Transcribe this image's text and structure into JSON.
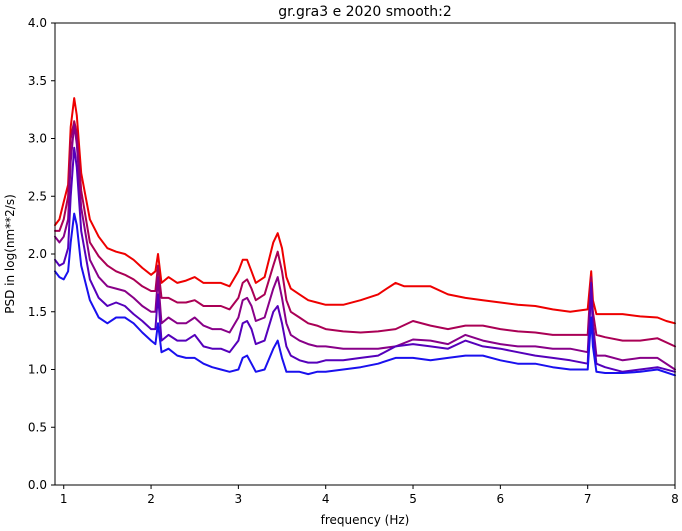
{
  "chart_data": {
    "type": "line",
    "title": "gr.gra3 e 2020 smooth:2",
    "xlabel": "frequency (Hz)",
    "ylabel": "PSD in log(nm**2/s)",
    "xlim": [
      0.9,
      8
    ],
    "ylim": [
      0,
      4
    ],
    "xticks": [
      "1",
      "2",
      "3",
      "4",
      "5",
      "6",
      "7",
      "8"
    ],
    "yticks": [
      "0.0",
      "0.5",
      "1.0",
      "1.5",
      "2.0",
      "2.5",
      "3.0",
      "3.5",
      "4.0"
    ],
    "grid": false,
    "legend": "none",
    "series": [
      {
        "color": "#ee0000",
        "x": [
          0.9,
          0.95,
          1.0,
          1.05,
          1.08,
          1.12,
          1.15,
          1.2,
          1.3,
          1.4,
          1.5,
          1.6,
          1.7,
          1.8,
          1.9,
          2.0,
          2.05,
          2.08,
          2.12,
          2.2,
          2.3,
          2.4,
          2.5,
          2.6,
          2.7,
          2.8,
          2.9,
          3.0,
          3.05,
          3.1,
          3.15,
          3.2,
          3.3,
          3.4,
          3.45,
          3.5,
          3.55,
          3.6,
          3.7,
          3.8,
          3.9,
          4.0,
          4.2,
          4.4,
          4.6,
          4.7,
          4.8,
          4.9,
          5.0,
          5.2,
          5.4,
          5.6,
          5.8,
          6.0,
          6.2,
          6.4,
          6.6,
          6.8,
          7.0,
          7.04,
          7.06,
          7.1,
          7.2,
          7.4,
          7.6,
          7.8,
          7.9,
          8.0
        ],
        "y": [
          2.25,
          2.3,
          2.45,
          2.6,
          3.1,
          3.35,
          3.2,
          2.7,
          2.3,
          2.15,
          2.05,
          2.02,
          2.0,
          1.95,
          1.88,
          1.82,
          1.85,
          2.0,
          1.75,
          1.8,
          1.75,
          1.77,
          1.8,
          1.75,
          1.75,
          1.75,
          1.72,
          1.85,
          1.95,
          1.95,
          1.85,
          1.75,
          1.8,
          2.1,
          2.18,
          2.05,
          1.8,
          1.7,
          1.65,
          1.6,
          1.58,
          1.56,
          1.56,
          1.6,
          1.65,
          1.7,
          1.75,
          1.72,
          1.72,
          1.72,
          1.65,
          1.62,
          1.6,
          1.58,
          1.56,
          1.55,
          1.52,
          1.5,
          1.52,
          1.85,
          1.6,
          1.48,
          1.48,
          1.48,
          1.46,
          1.45,
          1.42,
          1.4
        ]
      },
      {
        "color": "#aa0055",
        "x": [
          0.9,
          0.95,
          1.0,
          1.05,
          1.08,
          1.12,
          1.15,
          1.2,
          1.3,
          1.4,
          1.5,
          1.6,
          1.7,
          1.8,
          1.9,
          2.0,
          2.05,
          2.08,
          2.12,
          2.2,
          2.3,
          2.4,
          2.5,
          2.6,
          2.7,
          2.8,
          2.9,
          3.0,
          3.05,
          3.1,
          3.15,
          3.2,
          3.3,
          3.4,
          3.45,
          3.5,
          3.55,
          3.6,
          3.7,
          3.8,
          3.9,
          4.0,
          4.2,
          4.4,
          4.6,
          4.8,
          5.0,
          5.2,
          5.4,
          5.6,
          5.8,
          6.0,
          6.2,
          6.4,
          6.6,
          6.8,
          7.0,
          7.04,
          7.06,
          7.1,
          7.2,
          7.4,
          7.6,
          7.8,
          8.0
        ],
        "y": [
          2.2,
          2.2,
          2.3,
          2.5,
          3.0,
          3.15,
          3.05,
          2.55,
          2.1,
          1.98,
          1.9,
          1.85,
          1.82,
          1.78,
          1.72,
          1.68,
          1.68,
          1.9,
          1.62,
          1.62,
          1.58,
          1.58,
          1.6,
          1.55,
          1.55,
          1.55,
          1.52,
          1.62,
          1.75,
          1.78,
          1.7,
          1.6,
          1.65,
          1.9,
          2.02,
          1.85,
          1.6,
          1.5,
          1.45,
          1.4,
          1.38,
          1.35,
          1.33,
          1.32,
          1.33,
          1.35,
          1.42,
          1.38,
          1.35,
          1.38,
          1.38,
          1.35,
          1.33,
          1.32,
          1.3,
          1.3,
          1.3,
          1.8,
          1.5,
          1.3,
          1.28,
          1.25,
          1.25,
          1.27,
          1.2
        ]
      },
      {
        "color": "#880088",
        "x": [
          0.9,
          0.95,
          1.0,
          1.05,
          1.08,
          1.12,
          1.15,
          1.2,
          1.3,
          1.4,
          1.5,
          1.6,
          1.7,
          1.8,
          1.9,
          2.0,
          2.05,
          2.08,
          2.12,
          2.2,
          2.3,
          2.4,
          2.5,
          2.6,
          2.7,
          2.8,
          2.9,
          3.0,
          3.05,
          3.1,
          3.15,
          3.2,
          3.3,
          3.4,
          3.45,
          3.5,
          3.55,
          3.6,
          3.7,
          3.8,
          3.9,
          4.0,
          4.2,
          4.4,
          4.6,
          4.8,
          5.0,
          5.2,
          5.4,
          5.6,
          5.8,
          6.0,
          6.2,
          6.4,
          6.6,
          6.8,
          7.0,
          7.04,
          7.06,
          7.1,
          7.2,
          7.4,
          7.6,
          7.8,
          8.0
        ],
        "y": [
          2.15,
          2.1,
          2.15,
          2.3,
          2.8,
          3.12,
          2.95,
          2.4,
          1.95,
          1.8,
          1.72,
          1.7,
          1.68,
          1.62,
          1.55,
          1.5,
          1.5,
          1.8,
          1.4,
          1.45,
          1.4,
          1.4,
          1.45,
          1.38,
          1.35,
          1.35,
          1.32,
          1.45,
          1.6,
          1.62,
          1.55,
          1.42,
          1.45,
          1.7,
          1.8,
          1.62,
          1.4,
          1.3,
          1.25,
          1.22,
          1.2,
          1.2,
          1.18,
          1.18,
          1.18,
          1.2,
          1.26,
          1.25,
          1.22,
          1.3,
          1.25,
          1.22,
          1.2,
          1.2,
          1.18,
          1.18,
          1.15,
          1.7,
          1.4,
          1.12,
          1.12,
          1.08,
          1.1,
          1.1,
          1.0
        ]
      },
      {
        "color": "#5500bb",
        "x": [
          0.9,
          0.95,
          1.0,
          1.05,
          1.08,
          1.12,
          1.15,
          1.2,
          1.3,
          1.4,
          1.5,
          1.6,
          1.7,
          1.8,
          1.9,
          2.0,
          2.05,
          2.08,
          2.12,
          2.2,
          2.3,
          2.4,
          2.5,
          2.6,
          2.7,
          2.8,
          2.9,
          3.0,
          3.05,
          3.1,
          3.15,
          3.2,
          3.3,
          3.4,
          3.45,
          3.5,
          3.55,
          3.6,
          3.7,
          3.8,
          3.9,
          4.0,
          4.2,
          4.4,
          4.6,
          4.8,
          5.0,
          5.2,
          5.4,
          5.6,
          5.8,
          6.0,
          6.2,
          6.4,
          6.6,
          6.8,
          7.0,
          7.04,
          7.06,
          7.1,
          7.2,
          7.4,
          7.6,
          7.8,
          8.0
        ],
        "y": [
          1.95,
          1.9,
          1.92,
          2.05,
          2.5,
          2.92,
          2.75,
          2.2,
          1.78,
          1.62,
          1.55,
          1.58,
          1.55,
          1.48,
          1.42,
          1.35,
          1.35,
          1.65,
          1.25,
          1.3,
          1.25,
          1.25,
          1.3,
          1.2,
          1.18,
          1.18,
          1.15,
          1.25,
          1.4,
          1.42,
          1.35,
          1.22,
          1.25,
          1.5,
          1.55,
          1.4,
          1.2,
          1.12,
          1.08,
          1.06,
          1.06,
          1.08,
          1.08,
          1.1,
          1.12,
          1.2,
          1.22,
          1.2,
          1.18,
          1.25,
          1.2,
          1.18,
          1.15,
          1.12,
          1.1,
          1.08,
          1.05,
          1.75,
          1.35,
          1.05,
          1.02,
          0.98,
          1.0,
          1.02,
          0.98
        ]
      },
      {
        "color": "#1a10ee",
        "x": [
          0.9,
          0.95,
          1.0,
          1.05,
          1.08,
          1.12,
          1.15,
          1.2,
          1.3,
          1.4,
          1.5,
          1.6,
          1.7,
          1.8,
          1.9,
          2.0,
          2.05,
          2.08,
          2.12,
          2.2,
          2.3,
          2.4,
          2.5,
          2.6,
          2.7,
          2.8,
          2.9,
          3.0,
          3.05,
          3.1,
          3.15,
          3.2,
          3.3,
          3.4,
          3.45,
          3.5,
          3.55,
          3.6,
          3.7,
          3.8,
          3.9,
          4.0,
          4.2,
          4.4,
          4.6,
          4.8,
          5.0,
          5.2,
          5.4,
          5.6,
          5.8,
          6.0,
          6.2,
          6.4,
          6.6,
          6.8,
          7.0,
          7.04,
          7.06,
          7.1,
          7.2,
          7.4,
          7.6,
          7.8,
          8.0
        ],
        "y": [
          1.85,
          1.8,
          1.78,
          1.85,
          2.1,
          2.35,
          2.25,
          1.9,
          1.6,
          1.45,
          1.4,
          1.45,
          1.45,
          1.4,
          1.32,
          1.25,
          1.22,
          1.4,
          1.15,
          1.18,
          1.12,
          1.1,
          1.1,
          1.05,
          1.02,
          1.0,
          0.98,
          1.0,
          1.1,
          1.12,
          1.05,
          0.98,
          1.0,
          1.18,
          1.25,
          1.1,
          0.98,
          0.98,
          0.98,
          0.96,
          0.98,
          0.98,
          1.0,
          1.02,
          1.05,
          1.1,
          1.1,
          1.08,
          1.1,
          1.12,
          1.12,
          1.08,
          1.05,
          1.05,
          1.02,
          1.0,
          1.0,
          1.45,
          1.2,
          0.98,
          0.97,
          0.97,
          0.98,
          1.0,
          0.95
        ]
      }
    ]
  }
}
